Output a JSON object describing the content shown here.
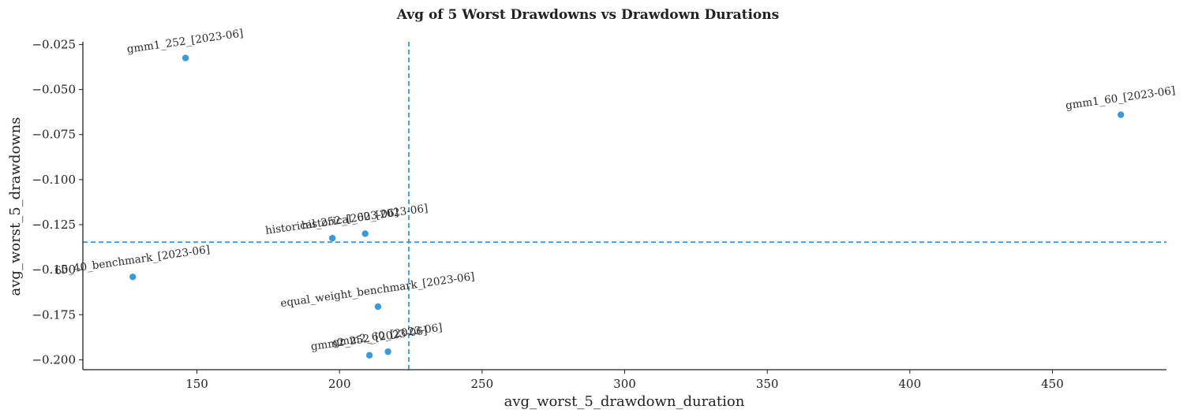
{
  "chart_data": {
    "type": "scatter",
    "title": "Avg of 5 Worst Drawdowns vs Drawdown Durations",
    "xlabel": "avg_worst_5_drawdown_duration",
    "ylabel": "avg_worst_5_drawdowns",
    "xlim": [
      110,
      490
    ],
    "ylim": [
      -0.2055,
      -0.0235
    ],
    "xticks": [
      150,
      200,
      250,
      300,
      350,
      400,
      450
    ],
    "xtick_labels": [
      "150",
      "200",
      "250",
      "300",
      "350",
      "400",
      "450"
    ],
    "yticks": [
      -0.025,
      -0.05,
      -0.075,
      -0.1,
      -0.125,
      -0.15,
      -0.175,
      -0.2
    ],
    "ytick_labels": [
      "−0.025",
      "−0.050",
      "−0.075",
      "−0.100",
      "−0.125",
      "−0.150",
      "−0.175",
      "−0.200"
    ],
    "reference_lines": {
      "x": 224.3,
      "y": -0.1347
    },
    "grid": false,
    "point_color": "#3a9ad9",
    "points": [
      {
        "label": "gmm1_252_[2023-06]",
        "x": 146,
        "y": -0.0325
      },
      {
        "label": "gmm1_60_[2023-06]",
        "x": 474,
        "y": -0.064
      },
      {
        "label": "historical_252_[2023-06]",
        "x": 197.5,
        "y": -0.1325
      },
      {
        "label": "historical_60_[2023-06]",
        "x": 209,
        "y": -0.13
      },
      {
        "label": "60_40_benchmark_[2023-06]",
        "x": 127.5,
        "y": -0.154
      },
      {
        "label": "equal_weight_benchmark_[2023-06]",
        "x": 213.5,
        "y": -0.1705
      },
      {
        "label": "gmm2_252_[2023-06]",
        "x": 210.5,
        "y": -0.1975
      },
      {
        "label": "gmm2_60_[2023-06]",
        "x": 217,
        "y": -0.1955
      }
    ]
  }
}
